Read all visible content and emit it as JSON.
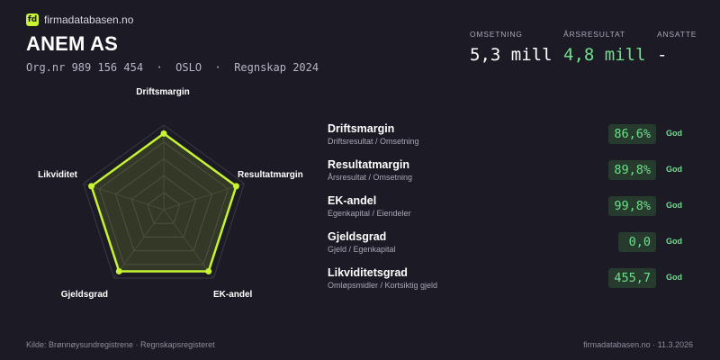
{
  "brand": {
    "logo_text": "fd",
    "name": "firmadatabasen.no"
  },
  "company": {
    "name": "ANEM AS",
    "meta": "Org.nr 989 156 454  ·  OSLO  ·  Regnskap 2024"
  },
  "kpis": [
    {
      "label": "OMSETNING",
      "value": "5,3 mill",
      "color": "#ffffff"
    },
    {
      "label": "ÅRSRESULTAT",
      "value": "4,8 mill",
      "color": "#6fe08a"
    },
    {
      "label": "ANSATTE",
      "value": "-",
      "color": "#ffffff"
    }
  ],
  "radar": {
    "axes": [
      "Driftsmargin",
      "Resultatmargin",
      "EK-andel",
      "Gjeldsgrad",
      "Likviditet"
    ],
    "scores": [
      0.9,
      0.9,
      0.9,
      0.9,
      0.9
    ],
    "accent_color": "#c6f432"
  },
  "metrics": [
    {
      "title": "Driftsmargin",
      "subtitle": "Driftsresultat / Omsetning",
      "value": "86,6%",
      "rating": "God"
    },
    {
      "title": "Resultatmargin",
      "subtitle": "Årsresultat / Omsetning",
      "value": "89,8%",
      "rating": "God"
    },
    {
      "title": "EK-andel",
      "subtitle": "Egenkapital / Eiendeler",
      "value": "99,8%",
      "rating": "God"
    },
    {
      "title": "Gjeldsgrad",
      "subtitle": "Gjeld / Egenkapital",
      "value": "0,0",
      "rating": "God"
    },
    {
      "title": "Likviditetsgrad",
      "subtitle": "Omløpsmidler / Kortsiktig gjeld",
      "value": "455,7",
      "rating": "God"
    }
  ],
  "footer": {
    "source": "Kilde: Brønnøysundregistrene · Regnskapsregisteret",
    "site_date": "firmadatabasen.no · 11.3.2026"
  }
}
